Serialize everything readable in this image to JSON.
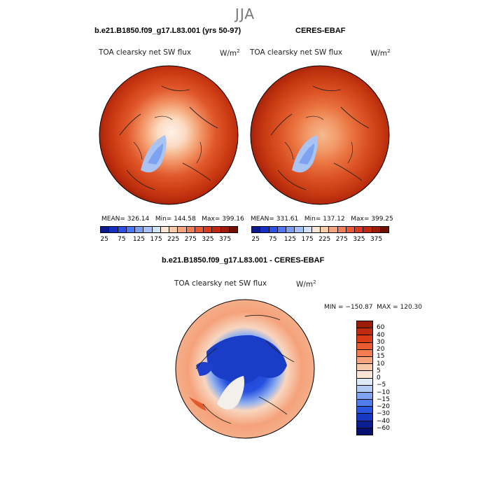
{
  "season": "JJA",
  "panels": [
    {
      "case_label": "b.e21.B1850.f09_g17.L83.001 (yrs 50-97)",
      "variable": "TOA clearsky net SW flux",
      "units_base": "W/m",
      "units_exp": "2",
      "stats_text": "MEAN= 326.14   Min= 144.58   Max= 399.16"
    },
    {
      "case_label": "CERES-EBAF",
      "variable": "TOA clearsky net SW flux",
      "units_base": "W/m",
      "units_exp": "2",
      "stats_text": "MEAN= 331.61   Min= 137.12   Max= 399.25"
    }
  ],
  "diff_panel": {
    "case_label": "b.e21.B1850.f09_g17.L83.001 - CERES-EBAF",
    "variable": "TOA clearsky net SW flux",
    "units_base": "W/m",
    "units_exp": "2",
    "stats_text": "MIN = −150.87  MAX = 120.30"
  },
  "colorbar_top": {
    "labels": [
      "25",
      "75",
      "125",
      "175",
      "225",
      "275",
      "325",
      "375"
    ],
    "colors": [
      "#0b1a8c",
      "#1630c4",
      "#2a52e8",
      "#4d7af4",
      "#7aa0f6",
      "#a6c3f5",
      "#d3e2f8",
      "#fbe6d6",
      "#f8c9a8",
      "#f5a47c",
      "#f27d52",
      "#ec5a30",
      "#dc3b17",
      "#c02a0e",
      "#9b1c08",
      "#6f1000"
    ]
  },
  "colorbar_diff": {
    "labels": [
      "60",
      "40",
      "30",
      "20",
      "15",
      "10",
      "5",
      "0",
      "−5",
      "−10",
      "−15",
      "−20",
      "−30",
      "−40",
      "−60"
    ],
    "colors": [
      "#9b1c08",
      "#c02a0e",
      "#dc3b17",
      "#ec5a30",
      "#f27d52",
      "#f5a47c",
      "#f8c9a8",
      "#fbe6d6",
      "#ddeaf8",
      "#b0cbf4",
      "#7ea3f2",
      "#4f7ceb",
      "#2a55e0",
      "#1638c2",
      "#0b1f95",
      "#061070"
    ]
  }
}
